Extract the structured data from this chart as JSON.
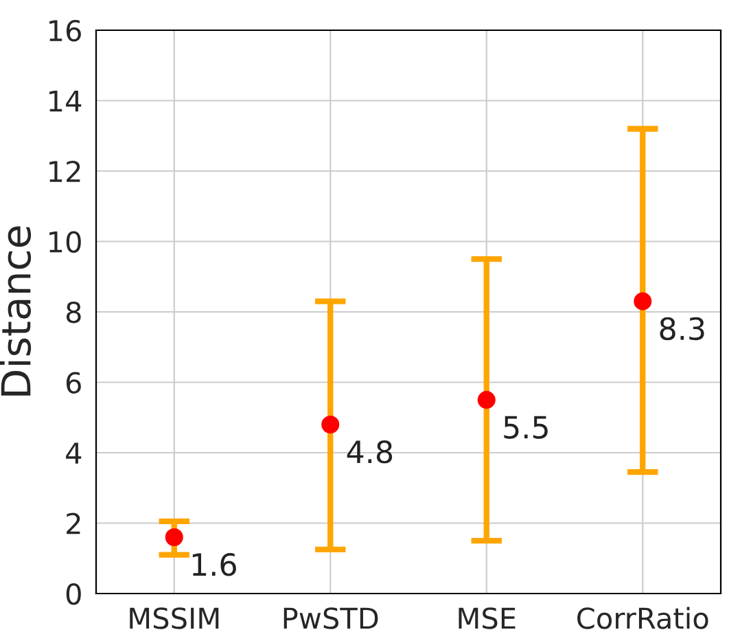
{
  "chart_data": {
    "type": "scatter",
    "ylabel": "Distance",
    "categories": [
      "MSSIM",
      "PwSTD",
      "MSE",
      "CorrRatio"
    ],
    "values": [
      1.6,
      4.8,
      5.5,
      8.3
    ],
    "errors": [
      [
        1.1,
        2.05
      ],
      [
        1.25,
        8.3
      ],
      [
        1.5,
        9.5
      ],
      [
        3.45,
        13.2
      ]
    ],
    "color": "#ff0000",
    "marker": "circle",
    "data_labels": true,
    "ylim": [
      0,
      16
    ],
    "yticks": [
      0,
      2,
      4,
      6,
      8,
      10,
      12,
      14,
      16
    ],
    "grid": true
  }
}
